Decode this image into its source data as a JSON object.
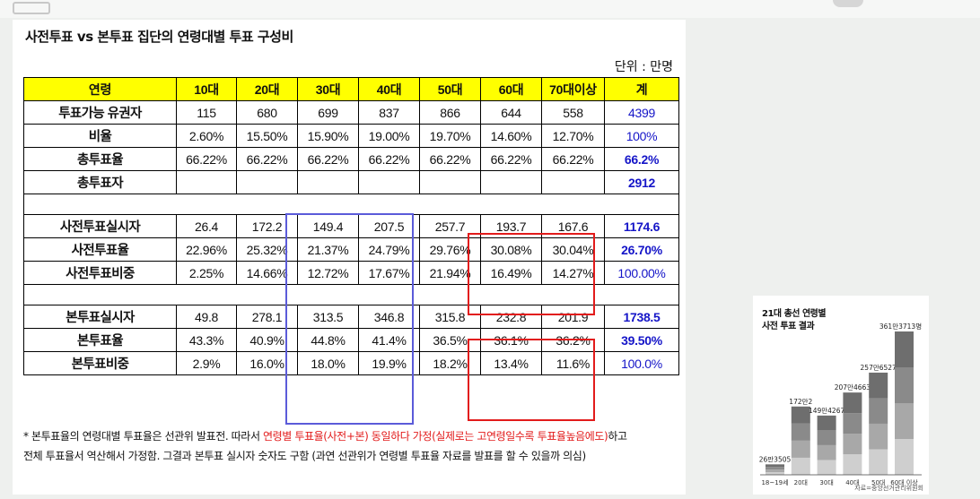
{
  "table": {
    "title": "사전투표 vs 본투표 집단의 연령대별 투표 구성비",
    "unit": "단위 : 만명",
    "headers": [
      "연령",
      "10대",
      "20대",
      "30대",
      "40대",
      "50대",
      "60대",
      "70대이상",
      "계"
    ],
    "rows": [
      {
        "label": "투표가능 유권자",
        "values": [
          "115",
          "680",
          "699",
          "837",
          "866",
          "644",
          "558"
        ],
        "total": "4399",
        "total_style": "tot"
      },
      {
        "label": "비율",
        "values": [
          "2.60%",
          "15.50%",
          "15.90%",
          "19.00%",
          "19.70%",
          "14.60%",
          "12.70%"
        ],
        "total": "100%",
        "total_style": "tot"
      },
      {
        "label": "총투표율",
        "values": [
          "66.22%",
          "66.22%",
          "66.22%",
          "66.22%",
          "66.22%",
          "66.22%",
          "66.22%"
        ],
        "total": "66.2%",
        "total_style": "totb"
      },
      {
        "label": "총투표자",
        "values": [
          "",
          "",
          "",
          "",
          "",
          "",
          ""
        ],
        "total": "2912",
        "total_style": "totb"
      },
      {
        "gap": true
      },
      {
        "label": "사전투표실시자",
        "values": [
          "26.4",
          "172.2",
          "149.4",
          "207.5",
          "257.7",
          "193.7",
          "167.6"
        ],
        "total": "1174.6",
        "total_style": "totb"
      },
      {
        "label": "사전투표율",
        "values": [
          "22.96%",
          "25.32%",
          "21.37%",
          "24.79%",
          "29.76%",
          "30.08%",
          "30.04%"
        ],
        "total": "26.70%",
        "total_style": "totb"
      },
      {
        "label": "사전투표비중",
        "values": [
          "2.25%",
          "14.66%",
          "12.72%",
          "17.67%",
          "21.94%",
          "16.49%",
          "14.27%"
        ],
        "total": "100.00%",
        "total_style": "tot"
      },
      {
        "gap": true
      },
      {
        "label": "본투표실시자",
        "values": [
          "49.8",
          "278.1",
          "313.5",
          "346.8",
          "315.8",
          "232.8",
          "201.9"
        ],
        "total": "1738.5",
        "total_style": "totb"
      },
      {
        "label": "본투표율",
        "values": [
          "43.3%",
          "40.9%",
          "44.8%",
          "41.4%",
          "36.5%",
          "36.1%",
          "36.2%"
        ],
        "total": "39.50%",
        "total_style": "totb"
      },
      {
        "label": "본투표비중",
        "values": [
          "2.9%",
          "16.0%",
          "18.0%",
          "19.9%",
          "18.2%",
          "13.4%",
          "11.6%"
        ],
        "total": "100.0%",
        "total_style": "tot"
      }
    ]
  },
  "note": {
    "prefix": "* 본투표율의 연령대별 투표율은 선관위 발표전. 따라서 ",
    "highlight": "연령별 투표율(사전+본) 동일하다 가정(실제로는 고연령일수록 투표율높음에도)",
    "suffix": "하고",
    "line2": "전체 투표율서 역산해서 가정함. 그결과 본투표 실시자 숫자도 구함 (과연 선관위가 연령별 투표율 자료를 발표를 할 수 있을까 의심)"
  },
  "colors": {
    "header_bg": "#ffff00",
    "total_text": "#1515c8",
    "highlight_blue": "#5b5bd9",
    "highlight_red": "#e21b1b"
  },
  "inset": {
    "title_line1": "21대 총선 연령별",
    "title_line2": "사전 투표 결과",
    "source": "자료=중앙선거관리위원회",
    "chart_data": {
      "type": "bar",
      "stacked": true,
      "categories": [
        "18~19세",
        "20대",
        "30대",
        "40대",
        "50대",
        "60대 이상"
      ],
      "values": [
        263505,
        1722002,
        1494267,
        2074663,
        2576527,
        3613713
      ],
      "value_labels": [
        "26만3505",
        "172만2",
        "149만4267",
        "207만4663",
        "257만6527",
        "361만3713명"
      ],
      "ylim": [
        0,
        3613713
      ]
    }
  }
}
